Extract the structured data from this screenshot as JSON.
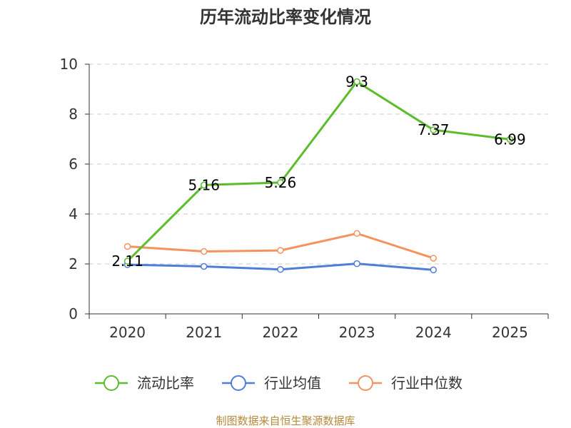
{
  "chart_data": {
    "type": "line",
    "title": "历年流动比率变化情况",
    "categories": [
      "2020",
      "2021",
      "2022",
      "2023",
      "2024",
      "2025"
    ],
    "ylim": [
      0,
      10
    ],
    "yticks": [
      0,
      2,
      4,
      6,
      8,
      10
    ],
    "grid": true,
    "legend_position": "bottom-center",
    "series": [
      {
        "name": "流动比率",
        "color": "#5bbd2b",
        "values": [
          2.11,
          5.16,
          5.26,
          9.3,
          7.37,
          6.99
        ],
        "labels": [
          "2.11",
          "5.16",
          "5.26",
          "9.3",
          "7.37",
          "6.99"
        ],
        "show_labels": true
      },
      {
        "name": "行业均值",
        "color": "#4f7ed9",
        "values": [
          1.97,
          1.9,
          1.78,
          2.01,
          1.76,
          null
        ],
        "show_labels": false
      },
      {
        "name": "行业中位数",
        "color": "#f5925e",
        "values": [
          2.7,
          2.5,
          2.54,
          3.22,
          2.23,
          null
        ],
        "show_labels": false
      }
    ],
    "source": "制图数据来自恒生聚源数据库"
  }
}
